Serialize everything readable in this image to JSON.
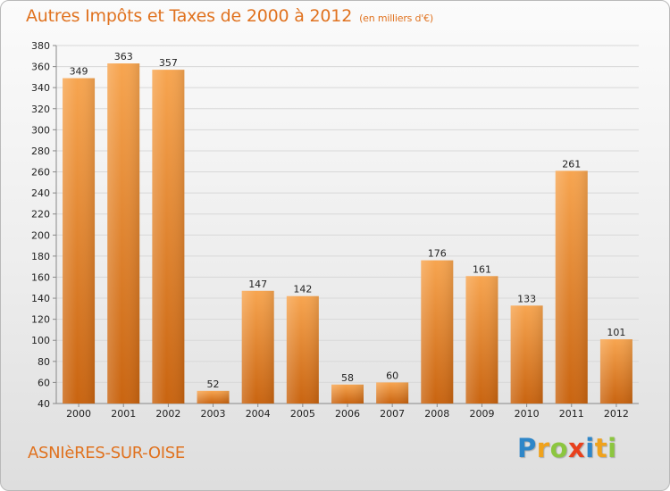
{
  "title": "Autres Impôts et Taxes de 2000 à 2012",
  "subtitle": "(en milliers d'€)",
  "location": "ASNIèRES-SUR-OISE",
  "logo": {
    "letters": [
      "P",
      "r",
      "o",
      "x",
      "i",
      "t",
      "i"
    ],
    "colors": [
      "#2e86c8",
      "#f0a21b",
      "#8cc63f",
      "#e8401c",
      "#2e86c8",
      "#f0a21b",
      "#8cc63f"
    ]
  },
  "colors": {
    "title": "#e0721f",
    "bar_light": "#f7a550",
    "bar_dark": "#c96410",
    "grid": "#d8d8d8"
  },
  "chart_data": {
    "type": "bar",
    "categories": [
      "2000",
      "2001",
      "2002",
      "2003",
      "2004",
      "2005",
      "2006",
      "2007",
      "2008",
      "2009",
      "2010",
      "2011",
      "2012"
    ],
    "values": [
      349,
      363,
      357,
      52,
      147,
      142,
      58,
      60,
      176,
      161,
      133,
      261,
      101
    ],
    "title": "Autres Impôts et Taxes de 2000 à 2012",
    "xlabel": "",
    "ylabel": "",
    "ylim": [
      40,
      380
    ],
    "yticks": [
      40,
      60,
      80,
      100,
      120,
      140,
      160,
      180,
      200,
      220,
      240,
      260,
      280,
      300,
      320,
      340,
      360,
      380
    ],
    "grid": true,
    "data_labels": true
  }
}
